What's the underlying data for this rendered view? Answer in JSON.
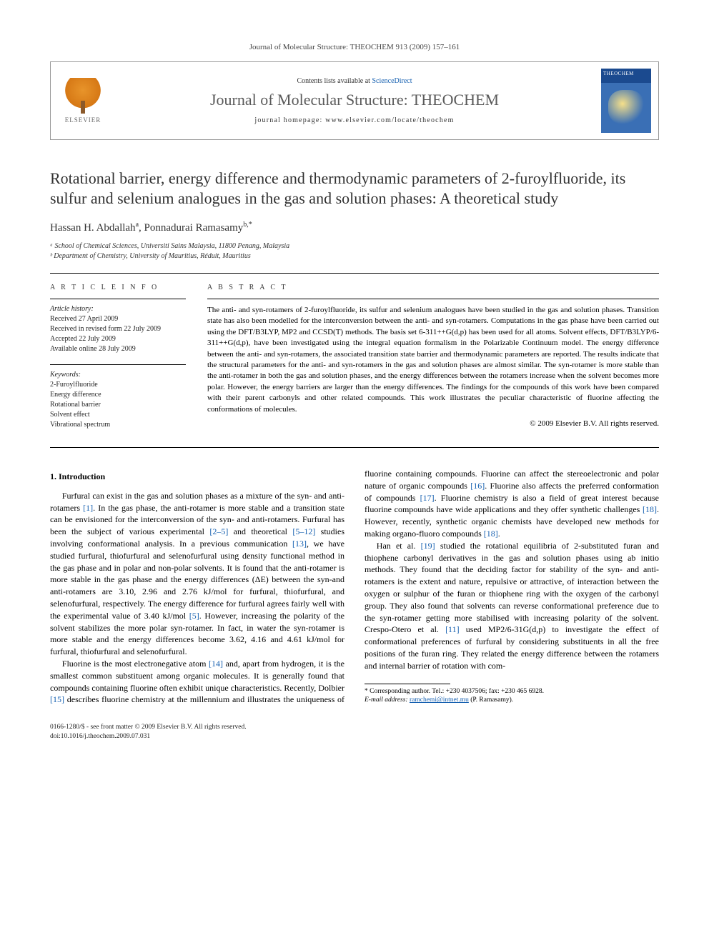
{
  "journal_ref": "Journal of Molecular Structure: THEOCHEM 913 (2009) 157–161",
  "header": {
    "contents_prefix": "Contents lists available at ",
    "contents_link": "ScienceDirect",
    "journal_name": "Journal of Molecular Structure: THEOCHEM",
    "homepage_prefix": "journal homepage: ",
    "homepage_url": "www.elsevier.com/locate/theochem",
    "publisher_logo_text": "ELSEVIER",
    "cover_label": "THEOCHEM"
  },
  "title": "Rotational barrier, energy difference and thermodynamic parameters of 2-furoylfluoride, its sulfur and selenium analogues in the gas and solution phases: A theoretical study",
  "authors_html": "Hassan H. Abdallah ª, Ponnadurai Ramasamy ᵇ·*",
  "authors": [
    {
      "name": "Hassan H. Abdallah",
      "marker": "a"
    },
    {
      "name": "Ponnadurai Ramasamy",
      "marker": "b,*"
    }
  ],
  "affiliations": [
    "ᵃ School of Chemical Sciences, Universiti Sains Malaysia, 11800 Penang, Malaysia",
    "ᵇ Department of Chemistry, University of Mauritius, Réduit, Mauritius"
  ],
  "labels": {
    "article_info": "A R T I C L E   I N F O",
    "abstract": "A B S T R A C T",
    "history_title": "Article history:",
    "keywords_title": "Keywords:"
  },
  "history": [
    "Received 27 April 2009",
    "Received in revised form 22 July 2009",
    "Accepted 22 July 2009",
    "Available online 28 July 2009"
  ],
  "keywords": [
    "2-Furoylfluoride",
    "Energy difference",
    "Rotational barrier",
    "Solvent effect",
    "Vibrational spectrum"
  ],
  "abstract": "The anti- and syn-rotamers of 2-furoylfluoride, its sulfur and selenium analogues have been studied in the gas and solution phases. Transition state has also been modelled for the interconversion between the anti- and syn-rotamers. Computations in the gas phase have been carried out using the DFT/B3LYP, MP2 and CCSD(T) methods. The basis set 6-311++G(d,p) has been used for all atoms. Solvent effects, DFT/B3LYP/6-311++G(d,p), have been investigated using the integral equation formalism in the Polarizable Continuum model. The energy difference between the anti- and syn-rotamers, the associated transition state barrier and thermodynamic parameters are reported. The results indicate that the structural parameters for the anti- and syn-rotamers in the gas and solution phases are almost similar. The syn-rotamer is more stable than the anti-rotamer in both the gas and solution phases, and the energy differences between the rotamers increase when the solvent becomes more polar. However, the energy barriers are larger than the energy differences. The findings for the compounds of this work have been compared with their parent carbonyls and other related compounds. This work illustrates the peculiar characteristic of fluorine affecting the conformations of molecules.",
  "copyright": "© 2009 Elsevier B.V. All rights reserved.",
  "section1_heading": "1. Introduction",
  "para1": "Furfural can exist in the gas and solution phases as a mixture of the syn- and anti-rotamers [1]. In the gas phase, the anti-rotamer is more stable and a transition state can be envisioned for the interconversion of the syn- and anti-rotamers. Furfural has been the subject of various experimental [2–5] and theoretical [5–12] studies involving conformational analysis. In a previous communication [13], we have studied furfural, thiofurfural and selenofurfural using density functional method in the gas phase and in polar and non-polar solvents. It is found that the anti-rotamer is more stable in the gas phase and the energy differences (ΔE) between the syn-and anti-rotamers are 3.10, 2.96 and 2.76 kJ/mol for furfural, thiofurfural, and selenofurfural, respectively. The energy difference for furfural agrees fairly well with the experimental value of 3.40 kJ/mol [5]. However, increasing the polarity of the solvent stabilizes the more polar syn-rotamer. In fact, in water the syn-rotamer is more stable and the energy differences become 3.62, 4.16 and 4.61 kJ/mol for furfural, thiofurfural and selenofurfural.",
  "para2": "Fluorine is the most electronegative atom [14] and, apart from hydrogen, it is the smallest common substituent among organic molecules. It is generally found that compounds containing fluorine often exhibit unique characteristics. Recently, Dolbier [15] describes fluorine chemistry at the millennium and illustrates the uniqueness of fluorine containing compounds. Fluorine can affect the stereoelectronic and polar nature of organic compounds [16]. Fluorine also affects the preferred conformation of compounds [17]. Fluorine chemistry is also a field of great interest because fluorine compounds have wide applications and they offer synthetic challenges [18]. However, recently, synthetic organic chemists have developed new methods for making organo-fluoro compounds [18].",
  "para3": "Han et al. [19] studied the rotational equilibria of 2-substituted furan and thiophene carbonyl derivatives in the gas and solution phases using ab initio methods. They found that the deciding factor for stability of the syn- and anti-rotamers is the extent and nature, repulsive or attractive, of interaction between the oxygen or sulphur of the furan or thiophene ring with the oxygen of the carbonyl group. They also found that solvents can reverse conformational preference due to the syn-rotamer getting more stabilised with increasing polarity of the solvent. Crespo-Otero et al. [11] used MP2/6-31G(d,p) to investigate the effect of conformational preferences of furfural by considering substituents in all the free positions of the furan ring. They related the energy difference between the rotamers and internal barrier of rotation with com-",
  "footnote": {
    "corr": "* Corresponding author. Tel.: +230 4037506; fax: +230 465 6928.",
    "email_label": "E-mail address: ",
    "email": "ramchemi@intnet.mu",
    "email_tail": " (P. Ramasamy)."
  },
  "footer": {
    "line1": "0166-1280/$ - see front matter © 2009 Elsevier B.V. All rights reserved.",
    "line2": "doi:10.1016/j.theochem.2009.07.031"
  },
  "colors": {
    "link": "#1660b0",
    "text": "#000000",
    "logo_orange": "#e8942a",
    "cover_blue": "#1b4a8f"
  }
}
